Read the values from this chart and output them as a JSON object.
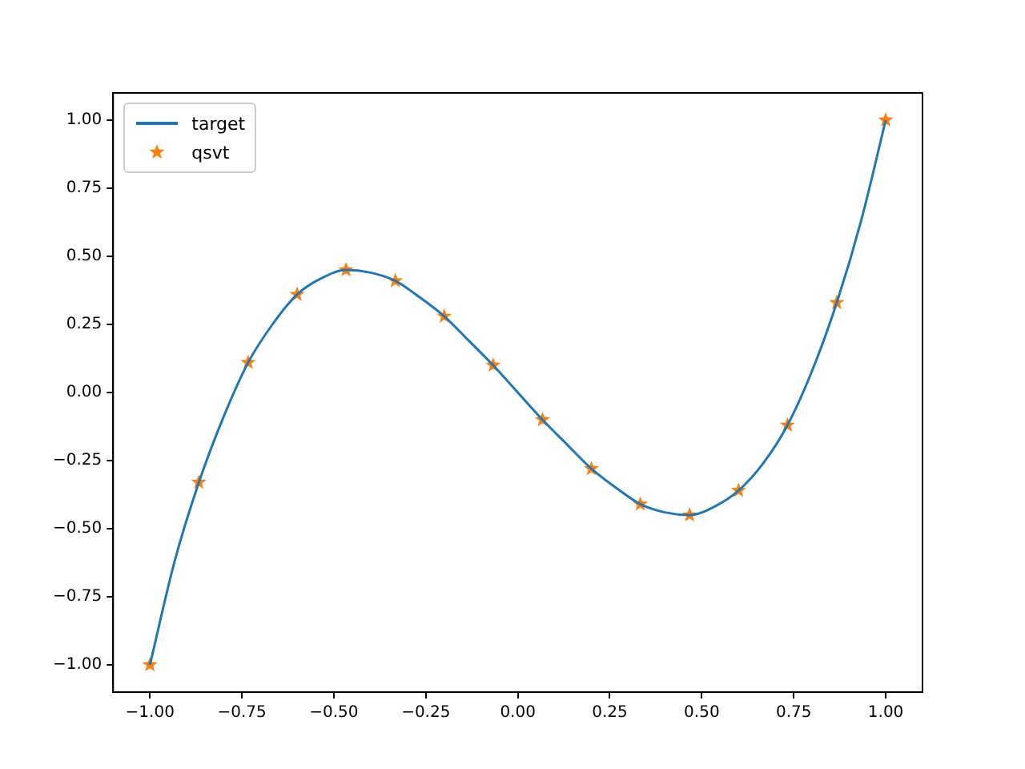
{
  "chart_data": {
    "type": "line",
    "xlim": [
      -1.1,
      1.1
    ],
    "ylim": [
      -1.1,
      1.1
    ],
    "xticks": [
      {
        "value": -1,
        "label": "−1.00"
      },
      {
        "value": -0.75,
        "label": "−0.75"
      },
      {
        "value": -0.5,
        "label": "−0.50"
      },
      {
        "value": -0.25,
        "label": "−0.25"
      },
      {
        "value": 0,
        "label": "0.00"
      },
      {
        "value": 0.25,
        "label": "0.25"
      },
      {
        "value": 0.5,
        "label": "0.50"
      },
      {
        "value": 0.75,
        "label": "0.75"
      },
      {
        "value": 1,
        "label": "1.00"
      }
    ],
    "yticks": [
      {
        "value": -1,
        "label": "−1.00"
      },
      {
        "value": -0.75,
        "label": "−0.75"
      },
      {
        "value": -0.5,
        "label": "−0.50"
      },
      {
        "value": -0.25,
        "label": "−0.25"
      },
      {
        "value": 0,
        "label": "0.00"
      },
      {
        "value": 0.25,
        "label": "0.25"
      },
      {
        "value": 0.5,
        "label": "0.50"
      },
      {
        "value": 0.75,
        "label": "0.75"
      },
      {
        "value": 1,
        "label": "1.00"
      }
    ],
    "grid": false,
    "legend": "top left",
    "series": [
      {
        "name": "target",
        "type": "line",
        "color": "#1f77b4",
        "marker": "none",
        "line_style": "solid",
        "x": [
          -1,
          -0.933,
          -0.867,
          -0.8,
          -0.733,
          -0.667,
          -0.6,
          -0.533,
          -0.467,
          -0.4,
          -0.333,
          -0.267,
          -0.2,
          -0.133,
          -0.067,
          0,
          0.067,
          0.133,
          0.2,
          0.267,
          0.333,
          0.4,
          0.467,
          0.533,
          0.6,
          0.667,
          0.733,
          0.8,
          0.867,
          0.933,
          1
        ],
        "values": [
          -1,
          -0.62,
          -0.33,
          -0.09,
          0.11,
          0.25,
          0.36,
          0.42,
          0.45,
          0.44,
          0.41,
          0.35,
          0.28,
          0.19,
          0.1,
          0,
          -0.1,
          -0.19,
          -0.28,
          -0.35,
          -0.41,
          -0.44,
          -0.45,
          -0.42,
          -0.36,
          -0.26,
          -0.12,
          0.08,
          0.33,
          0.63,
          1
        ]
      },
      {
        "name": "qsvt",
        "type": "scatter",
        "color": "#ff7f0e",
        "marker": "star",
        "x": [
          -1,
          -0.867,
          -0.733,
          -0.6,
          -0.467,
          -0.333,
          -0.2,
          -0.067,
          0.067,
          0.2,
          0.333,
          0.467,
          0.6,
          0.733,
          0.867,
          1
        ],
        "values": [
          -1,
          -0.33,
          0.11,
          0.36,
          0.45,
          0.41,
          0.28,
          0.1,
          -0.1,
          -0.28,
          -0.41,
          -0.45,
          -0.36,
          -0.12,
          0.33,
          1
        ]
      }
    ]
  }
}
